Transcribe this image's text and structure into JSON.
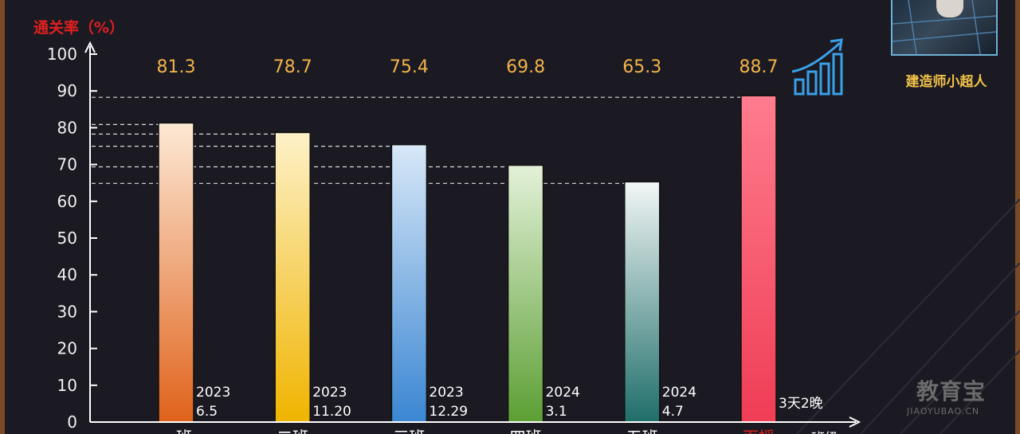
{
  "chart_data": {
    "type": "bar",
    "ylabel": "通关率（%）",
    "xlabel": "班级",
    "ylim": [
      0,
      100
    ],
    "yticks": [
      0,
      10,
      20,
      30,
      40,
      50,
      60,
      70,
      80,
      90,
      100
    ],
    "categories": [
      "一班",
      "二班",
      "三班",
      "四班",
      "五班",
      "面授"
    ],
    "values": [
      81.3,
      78.7,
      75.4,
      69.8,
      65.3,
      88.7
    ],
    "value_labels": [
      "81.3",
      "78.7",
      "75.4",
      "69.8",
      "65.3",
      "88.7"
    ],
    "date_labels": [
      [
        "2023",
        "6.5"
      ],
      [
        "2023",
        "11.20"
      ],
      [
        "2023",
        "12.29"
      ],
      [
        "2024",
        "3.1"
      ],
      [
        "2024",
        "4.7"
      ],
      [
        "3天2晚"
      ]
    ],
    "bar_colors": [
      [
        "#fde9d6",
        "#e0621b"
      ],
      [
        "#fdf1c8",
        "#f0b400"
      ],
      [
        "#d8e8f8",
        "#3a86d2"
      ],
      [
        "#e3f1d8",
        "#5c9f34"
      ],
      [
        "#f2f6f6",
        "#1f6e6a"
      ],
      [
        "#ff7c8e",
        "#ef3d55"
      ]
    ],
    "grid": false,
    "reference_lines": true
  },
  "colors": {
    "axis": "#ffffff",
    "ylabel": "#e02020",
    "tick_label": "#f0f0f0",
    "value_label": "#f2b24a",
    "ref_line": "#ffffff"
  },
  "brand": {
    "name": "建造师小超人"
  },
  "watermark": {
    "cn": "教育宝",
    "en": "JIAOYUBAO.CN"
  },
  "icons": {
    "trend": "bar-chart-trend-icon"
  }
}
